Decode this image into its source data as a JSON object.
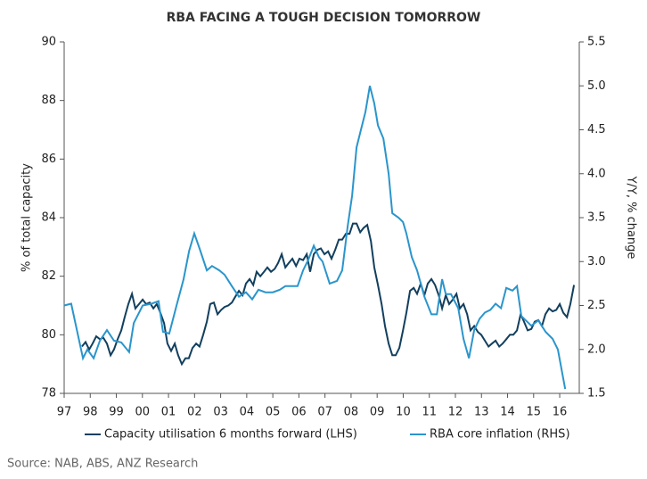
{
  "chart_data": {
    "type": "line",
    "title": "RBA FACING A TOUGH DECISION TOMORROW",
    "ylabel": "% of total capacity",
    "y2label": "Y/Y, % change",
    "source": "Source: NAB, ABS, ANZ Research",
    "xlim": [
      1997,
      2016.75
    ],
    "xticks": [
      {
        "value": 1997,
        "label": "97"
      },
      {
        "value": 1998,
        "label": "98"
      },
      {
        "value": 1999,
        "label": "99"
      },
      {
        "value": 2000,
        "label": "00"
      },
      {
        "value": 2001,
        "label": "01"
      },
      {
        "value": 2002,
        "label": "02"
      },
      {
        "value": 2003,
        "label": "03"
      },
      {
        "value": 2004,
        "label": "04"
      },
      {
        "value": 2005,
        "label": "05"
      },
      {
        "value": 2006,
        "label": "06"
      },
      {
        "value": 2007,
        "label": "07"
      },
      {
        "value": 2008,
        "label": "08"
      },
      {
        "value": 2009,
        "label": "09"
      },
      {
        "value": 2010,
        "label": "10"
      },
      {
        "value": 2011,
        "label": "11"
      },
      {
        "value": 2012,
        "label": "12"
      },
      {
        "value": 2013,
        "label": "13"
      },
      {
        "value": 2014,
        "label": "14"
      },
      {
        "value": 2015,
        "label": "15"
      },
      {
        "value": 2016,
        "label": "16"
      }
    ],
    "ylim": [
      78,
      90
    ],
    "yticks": [
      78,
      80,
      82,
      84,
      86,
      88,
      90
    ],
    "y2lim": [
      1.5,
      5.5
    ],
    "y2ticks": [
      1.5,
      {
        "value": 2,
        "label": "2.0"
      },
      2.5,
      {
        "value": 3,
        "label": "3.0"
      },
      3.5,
      {
        "value": 4,
        "label": "4.0"
      },
      4.5,
      {
        "value": 5,
        "label": "5.0"
      },
      5.5
    ],
    "legend": "bottom",
    "series": [
      {
        "name": "Capacity utilisation 6 months forward (LHS)",
        "color": "#123f5e",
        "axis": "y",
        "x": [
          1997.68,
          1997.82,
          1997.96,
          1998.09,
          1998.23,
          1998.37,
          1998.5,
          1998.64,
          1998.78,
          1998.91,
          1999.05,
          1999.19,
          1999.32,
          1999.46,
          1999.6,
          1999.73,
          1999.87,
          2000.01,
          2000.14,
          2000.28,
          2000.42,
          2000.55,
          2000.69,
          2000.83,
          2000.96,
          2001.1,
          2001.24,
          2001.37,
          2001.51,
          2001.65,
          2001.78,
          2001.92,
          2002.06,
          2002.19,
          2002.33,
          2002.47,
          2002.6,
          2002.74,
          2002.88,
          2003.02,
          2003.15,
          2003.29,
          2003.43,
          2003.56,
          2003.7,
          2003.84,
          2003.97,
          2004.11,
          2004.25,
          2004.38,
          2004.52,
          2004.66,
          2004.79,
          2004.93,
          2005.07,
          2005.2,
          2005.34,
          2005.48,
          2005.61,
          2005.75,
          2005.89,
          2006.02,
          2006.16,
          2006.3,
          2006.43,
          2006.57,
          2006.71,
          2006.84,
          2006.98,
          2007.12,
          2007.25,
          2007.39,
          2007.53,
          2007.66,
          2007.8,
          2007.94,
          2008.07,
          2008.21,
          2008.35,
          2008.48,
          2008.62,
          2008.76,
          2008.89,
          2009.03,
          2009.17,
          2009.3,
          2009.44,
          2009.58,
          2009.71,
          2009.85,
          2009.99,
          2010.12,
          2010.26,
          2010.4,
          2010.53,
          2010.67,
          2010.81,
          2010.94,
          2011.08,
          2011.22,
          2011.36,
          2011.49,
          2011.63,
          2011.76,
          2011.9,
          2012.04,
          2012.17,
          2012.31,
          2012.45,
          2012.58,
          2012.72,
          2012.86,
          2012.99,
          2013.13,
          2013.27,
          2013.4,
          2013.54,
          2013.68,
          2013.81,
          2013.95,
          2014.09,
          2014.22,
          2014.36,
          2014.5,
          2014.63,
          2014.77,
          2014.91,
          2015.04,
          2015.18,
          2015.32,
          2015.45,
          2015.59,
          2015.73,
          2015.87,
          2016.0,
          2016.14,
          2016.28,
          2016.41,
          2016.55
        ],
        "values": [
          79.6,
          79.75,
          79.5,
          79.7,
          79.95,
          79.85,
          79.9,
          79.7,
          79.3,
          79.5,
          79.85,
          80.15,
          80.6,
          81.05,
          81.4,
          80.9,
          81.05,
          81.2,
          81.05,
          81.1,
          80.9,
          81.05,
          80.75,
          80.4,
          79.7,
          79.45,
          79.7,
          79.3,
          79.0,
          79.2,
          79.2,
          79.55,
          79.7,
          79.6,
          80.0,
          80.45,
          81.05,
          81.1,
          80.7,
          80.85,
          80.95,
          81.0,
          81.1,
          81.3,
          81.5,
          81.35,
          81.75,
          81.9,
          81.7,
          82.15,
          82.0,
          82.15,
          82.3,
          82.15,
          82.25,
          82.45,
          82.75,
          82.3,
          82.45,
          82.6,
          82.35,
          82.6,
          82.55,
          82.75,
          82.15,
          82.75,
          82.9,
          82.95,
          82.75,
          82.85,
          82.6,
          82.9,
          83.25,
          83.25,
          83.45,
          83.45,
          83.8,
          83.8,
          83.5,
          83.65,
          83.75,
          83.2,
          82.3,
          81.7,
          81.05,
          80.3,
          79.7,
          79.3,
          79.3,
          79.55,
          80.15,
          80.75,
          81.5,
          81.6,
          81.4,
          81.75,
          81.35,
          81.75,
          81.9,
          81.7,
          81.35,
          80.9,
          81.35,
          81.05,
          81.2,
          81.4,
          80.9,
          81.05,
          80.7,
          80.15,
          80.3,
          80.1,
          80.0,
          79.8,
          79.6,
          79.7,
          79.8,
          79.6,
          79.7,
          79.85,
          80.0,
          80.0,
          80.15,
          80.7,
          80.45,
          80.15,
          80.2,
          80.45,
          80.5,
          80.3,
          80.7,
          80.9,
          80.8,
          80.85,
          81.05,
          80.75,
          80.6,
          81.05,
          81.7
        ]
      },
      {
        "name": "RBA core inflation (RHS)",
        "color": "#2a95cc",
        "axis": "y2",
        "x": [
          1997.0,
          1997.27,
          1997.72,
          1997.89,
          1998.13,
          1998.37,
          1998.64,
          1998.91,
          1999.19,
          1999.49,
          1999.67,
          2000.01,
          2000.35,
          2000.62,
          2000.79,
          2001.03,
          2001.31,
          2001.58,
          2001.79,
          2001.99,
          2002.19,
          2002.47,
          2002.67,
          2002.95,
          2003.15,
          2003.43,
          2003.7,
          2003.97,
          2004.21,
          2004.45,
          2004.72,
          2005.0,
          2005.27,
          2005.48,
          2005.68,
          2005.95,
          2006.16,
          2006.36,
          2006.57,
          2006.77,
          2006.91,
          2007.18,
          2007.46,
          2007.66,
          2007.87,
          2008.04,
          2008.21,
          2008.38,
          2008.55,
          2008.72,
          2008.89,
          2009.03,
          2009.24,
          2009.44,
          2009.58,
          2009.82,
          2009.99,
          2010.12,
          2010.33,
          2010.53,
          2010.81,
          2011.08,
          2011.29,
          2011.49,
          2011.63,
          2011.83,
          2012.11,
          2012.31,
          2012.52,
          2012.72,
          2012.93,
          2013.13,
          2013.34,
          2013.54,
          2013.75,
          2013.95,
          2014.19,
          2014.36,
          2014.53,
          2014.7,
          2014.91,
          2015.18,
          2015.46,
          2015.73,
          2015.93,
          2016.21
        ],
        "values": [
          2.5,
          2.52,
          1.9,
          2.0,
          1.9,
          2.1,
          2.22,
          2.1,
          2.08,
          1.97,
          2.3,
          2.5,
          2.52,
          2.55,
          2.2,
          2.18,
          2.5,
          2.8,
          3.12,
          3.32,
          3.15,
          2.9,
          2.95,
          2.9,
          2.85,
          2.72,
          2.6,
          2.65,
          2.57,
          2.68,
          2.65,
          2.65,
          2.68,
          2.72,
          2.72,
          2.72,
          2.9,
          3.02,
          3.18,
          3.05,
          3.0,
          2.75,
          2.78,
          2.9,
          3.4,
          3.75,
          4.3,
          4.5,
          4.7,
          5.0,
          4.8,
          4.55,
          4.4,
          4.0,
          3.55,
          3.5,
          3.45,
          3.32,
          3.05,
          2.9,
          2.6,
          2.4,
          2.4,
          2.8,
          2.63,
          2.63,
          2.47,
          2.12,
          1.9,
          2.22,
          2.35,
          2.42,
          2.45,
          2.52,
          2.47,
          2.7,
          2.67,
          2.72,
          2.38,
          2.33,
          2.27,
          2.33,
          2.2,
          2.12,
          2.0,
          1.55
        ]
      }
    ]
  }
}
